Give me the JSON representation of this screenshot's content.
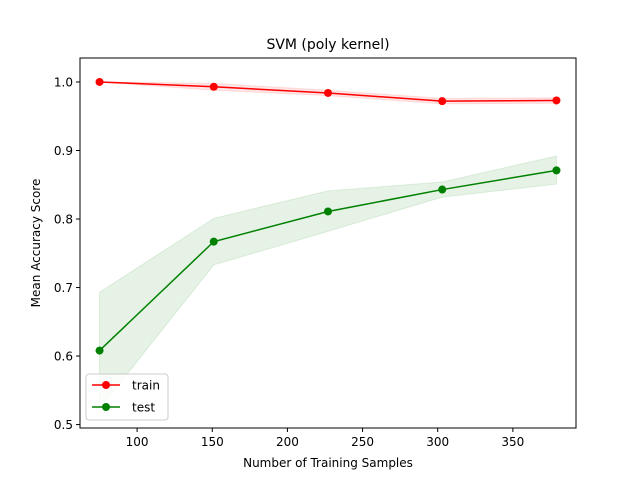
{
  "chart_data": {
    "type": "line",
    "title": "SVM (poly kernel)",
    "xlabel": "Number of Training Samples",
    "ylabel": "Mean Accuracy Score",
    "xlim": [
      62,
      392
    ],
    "ylim": [
      0.495,
      1.035
    ],
    "x": [
      75,
      151,
      227,
      303,
      379
    ],
    "xticks": [
      100,
      150,
      200,
      250,
      300,
      350
    ],
    "yticks": [
      0.5,
      0.6,
      0.7,
      0.8,
      0.9,
      1.0
    ],
    "xtick_labels": [
      "100",
      "150",
      "200",
      "250",
      "300",
      "350"
    ],
    "ytick_labels": [
      "0.5",
      "0.6",
      "0.7",
      "0.8",
      "0.9",
      "1.0"
    ],
    "grid": false,
    "legend_position": "lower-left",
    "series": [
      {
        "name": "train",
        "color": "#ff0000",
        "band_color": "#ff0000",
        "values": [
          1.0,
          0.993,
          0.984,
          0.972,
          0.973
        ],
        "lower": [
          1.0,
          0.988,
          0.98,
          0.968,
          0.969
        ],
        "upper": [
          1.0,
          0.998,
          0.988,
          0.976,
          0.977
        ]
      },
      {
        "name": "test",
        "color": "#008000",
        "band_color": "#008000",
        "values": [
          0.608,
          0.767,
          0.811,
          0.843,
          0.871
        ],
        "lower": [
          0.523,
          0.733,
          0.782,
          0.832,
          0.851
        ],
        "upper": [
          0.693,
          0.801,
          0.841,
          0.854,
          0.892
        ]
      }
    ]
  }
}
